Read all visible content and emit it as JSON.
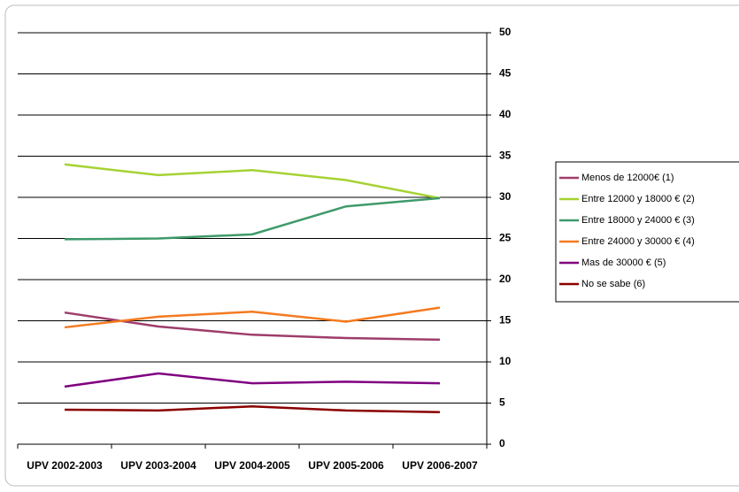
{
  "chart_data": {
    "type": "line",
    "categories": [
      "UPV 2002-2003",
      "UPV 2003-2004",
      "UPV 2004-2005",
      "UPV 2005-2006",
      "UPV 2006-2007"
    ],
    "series": [
      {
        "name": "Menos de 12000€ (1)",
        "color": "#9e3d6a",
        "values": [
          16.0,
          14.3,
          13.3,
          12.9,
          12.7
        ]
      },
      {
        "name": "Entre 12000 y 18000 € (2)",
        "color": "#a6d233",
        "values": [
          34.0,
          32.7,
          33.3,
          32.1,
          29.9
        ]
      },
      {
        "name": "Entre 18000 y 24000 € (3)",
        "color": "#3f9a6b",
        "values": [
          24.9,
          25.0,
          25.5,
          28.9,
          29.9
        ]
      },
      {
        "name": "Entre 24000 y 30000 € (4)",
        "color": "#f47a20",
        "values": [
          14.2,
          15.5,
          16.1,
          14.9,
          16.6
        ]
      },
      {
        "name": "Mas de 30000 € (5)",
        "color": "#800080",
        "values": [
          7.0,
          8.6,
          7.4,
          7.6,
          7.4
        ]
      },
      {
        "name": "No se sabe (6)",
        "color": "#8b0000",
        "values": [
          4.2,
          4.1,
          4.6,
          4.1,
          3.9
        ]
      }
    ],
    "ylim": [
      0,
      50
    ],
    "yticks": [
      0,
      5,
      10,
      15,
      20,
      25,
      30,
      35,
      40,
      45,
      50
    ],
    "grid": true,
    "y_axis_side": "right",
    "legend": "right"
  }
}
